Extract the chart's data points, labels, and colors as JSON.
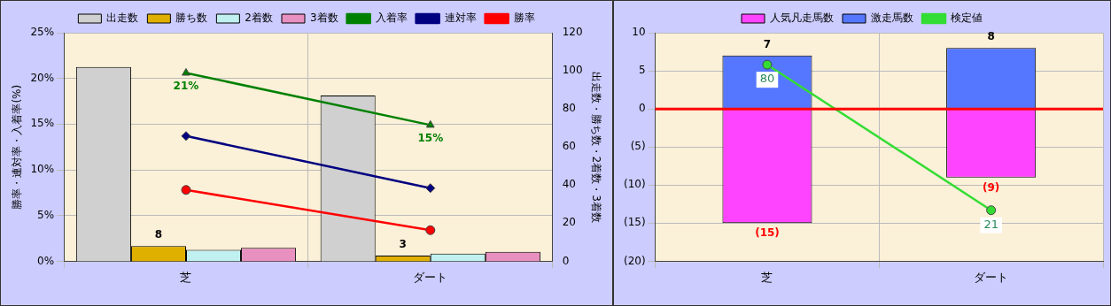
{
  "chart_data": [
    {
      "type": "bar",
      "categories": [
        "芝",
        "ダート"
      ],
      "ylabel": "勝率・連対率・入着率(%)",
      "y2label": "出走数・勝ち数・2着数・3着数",
      "ylim": [
        0,
        25
      ],
      "yticks": [
        {
          "value": 0,
          "label": "0%"
        },
        {
          "value": 5,
          "label": "5%"
        },
        {
          "value": 10,
          "label": "10%"
        },
        {
          "value": 15,
          "label": "15%"
        },
        {
          "value": 20,
          "label": "20%"
        },
        {
          "value": 25,
          "label": "25%"
        }
      ],
      "y2lim": [
        0,
        120
      ],
      "y2ticks": [
        0,
        20,
        40,
        60,
        80,
        100,
        120
      ],
      "grid": true,
      "legend": "top",
      "series": [
        {
          "name": "出走数",
          "color": "#d0d0d0",
          "axis": "y2",
          "values": [
            102,
            87
          ]
        },
        {
          "name": "勝ち数",
          "color": "#e0b000",
          "axis": "y2",
          "values": [
            8,
            3
          ],
          "value_labels": [
            "8",
            "3"
          ]
        },
        {
          "name": "2着数",
          "color": "#c0f0f0",
          "axis": "y2",
          "values": [
            6,
            4
          ]
        },
        {
          "name": "3着数",
          "color": "#e890c0",
          "axis": "y2",
          "values": [
            7,
            5
          ]
        },
        {
          "name": "入着率",
          "type": "line",
          "marker": "triangle",
          "color": "#008000",
          "values": [
            20.6,
            14.9
          ],
          "value_labels": [
            "21%",
            "15%"
          ]
        },
        {
          "name": "連対率",
          "type": "line",
          "marker": "diamond",
          "color": "#000080",
          "values": [
            13.7,
            8.0
          ]
        },
        {
          "name": "勝率",
          "type": "line",
          "marker": "circle",
          "color": "#ff0000",
          "values": [
            7.8,
            3.4
          ]
        }
      ]
    },
    {
      "type": "bar",
      "stacked": true,
      "categories": [
        "芝",
        "ダート"
      ],
      "ylim": [
        -20,
        10
      ],
      "yticks": [
        {
          "value": -20,
          "label": "(20)"
        },
        {
          "value": -15,
          "label": "(15)"
        },
        {
          "value": -10,
          "label": "(10)"
        },
        {
          "value": -5,
          "label": "(5)"
        },
        0,
        5,
        10
      ],
      "grid": true,
      "legend": "top",
      "ref_lines": [
        {
          "axis": "y",
          "value": 0,
          "color": "#ff0000"
        }
      ],
      "series": [
        {
          "name": "人気凡走馬数",
          "color": "#ff44ff",
          "values": [
            -15,
            -9
          ],
          "value_labels": [
            "(15)",
            "(9)"
          ]
        },
        {
          "name": "激走馬数",
          "color": "#5577ff",
          "values": [
            7,
            8
          ],
          "value_labels": [
            "7",
            "8"
          ]
        },
        {
          "name": "検定値",
          "type": "line",
          "marker": "circle",
          "color": "#33dd33",
          "values": [
            5.8,
            -13.3
          ]
        }
      ],
      "annotations": [
        {
          "text": "80",
          "x": "芝",
          "y": 5.8
        },
        {
          "text": "21",
          "x": "ダート",
          "y": -13.3
        }
      ]
    }
  ]
}
